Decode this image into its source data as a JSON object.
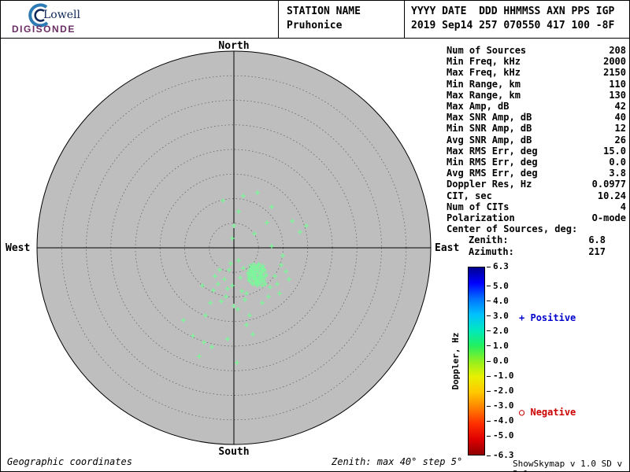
{
  "header": {
    "logo_line1": "Lowell",
    "logo_line2": "DIGISONDE",
    "station_label": "STATION NAME",
    "station_name": "Pruhonice",
    "date_label": "YYYY DATE  DDD HHMMSS AXN PPS IGP",
    "date_value": "2019 Sep14 257 070550 417 100 -8F"
  },
  "skymap": {
    "north": "North",
    "south": "South",
    "west": "West",
    "east": "East",
    "max_zenith_deg": 40,
    "ring_step_deg": 5,
    "background_color": "#bebebe",
    "marker_color": "#7bf69a",
    "points": [
      [
        28,
        34
      ],
      [
        24,
        30
      ],
      [
        33,
        38
      ],
      [
        21,
        36
      ],
      [
        36,
        31
      ],
      [
        27,
        24
      ],
      [
        31,
        44
      ],
      [
        18,
        32
      ],
      [
        40,
        36
      ],
      [
        26,
        40
      ],
      [
        30,
        27
      ],
      [
        35,
        25
      ],
      [
        23,
        25
      ],
      [
        28,
        37
      ],
      [
        33,
        34
      ],
      [
        20,
        42
      ],
      [
        38,
        43
      ],
      [
        25,
        32
      ],
      [
        31,
        40
      ],
      [
        36,
        36
      ],
      [
        22,
        29
      ],
      [
        27,
        46
      ],
      [
        32,
        21
      ],
      [
        39,
        29
      ],
      [
        19,
        37
      ],
      [
        29,
        43
      ],
      [
        34,
        28
      ],
      [
        24,
        38
      ],
      [
        38,
        40
      ],
      [
        21,
        23
      ],
      [
        27,
        34
      ],
      [
        31,
        31
      ],
      [
        26,
        27
      ],
      [
        35,
        42
      ],
      [
        19,
        34
      ],
      [
        30,
        48
      ],
      [
        37,
        23
      ],
      [
        23,
        44
      ],
      [
        28,
        30
      ],
      [
        33,
        45
      ],
      [
        25,
        21
      ],
      [
        41,
        34
      ],
      [
        20,
        28
      ],
      [
        32,
        37
      ],
      [
        27,
        39
      ],
      [
        36,
        48
      ],
      [
        22,
        34
      ],
      [
        29,
        25
      ],
      [
        34,
        32
      ],
      [
        24,
        46
      ],
      [
        30,
        42
      ],
      [
        38,
        27
      ],
      [
        19,
        40
      ],
      [
        26,
        36
      ],
      [
        31,
        22
      ],
      [
        35,
        38
      ],
      [
        23,
        31
      ],
      [
        28,
        44
      ],
      [
        40,
        46
      ],
      [
        21,
        38
      ],
      [
        10,
        55
      ],
      [
        -2,
        48
      ],
      [
        14,
        66
      ],
      [
        -12,
        40
      ],
      [
        5,
        78
      ],
      [
        46,
        50
      ],
      [
        52,
        36
      ],
      [
        60,
        22
      ],
      [
        -6,
        28
      ],
      [
        -10,
        62
      ],
      [
        16,
        58
      ],
      [
        -20,
        46
      ],
      [
        66,
        30
      ],
      [
        44,
        62
      ],
      [
        0,
        74
      ],
      [
        20,
        86
      ],
      [
        -16,
        68
      ],
      [
        8,
        38
      ],
      [
        -26,
        54
      ],
      [
        55,
        46
      ],
      [
        62,
        10
      ],
      [
        48,
        -2
      ],
      [
        -4,
        20
      ],
      [
        -18,
        28
      ],
      [
        6,
        16
      ],
      [
        70,
        40
      ],
      [
        58,
        58
      ],
      [
        -24,
        36
      ],
      [
        12,
        26
      ],
      [
        -8,
        52
      ],
      [
        -14,
        -60
      ],
      [
        6,
        -46
      ],
      [
        0,
        -28
      ],
      [
        26,
        -18
      ],
      [
        42,
        -32
      ],
      [
        -36,
        86
      ],
      [
        -8,
        116
      ],
      [
        4,
        146
      ],
      [
        -28,
        126
      ],
      [
        -52,
        112
      ],
      [
        -64,
        92
      ],
      [
        24,
        110
      ],
      [
        -44,
        138
      ],
      [
        12,
        -66
      ],
      [
        -2,
        -12
      ],
      [
        84,
        -20
      ],
      [
        92,
        -28
      ],
      [
        74,
        -34
      ],
      [
        -38,
        120
      ],
      [
        30,
        -70
      ],
      [
        48,
        -52
      ],
      [
        -30,
        70
      ],
      [
        -40,
        48
      ],
      [
        36,
        70
      ],
      [
        16,
        98
      ]
    ]
  },
  "stats": {
    "rows": [
      {
        "label": "Num of Sources",
        "value": "208"
      },
      {
        "label": "Min Freq, kHz",
        "value": "2000"
      },
      {
        "label": "Max Freq, kHz",
        "value": "2150"
      },
      {
        "label": "Min Range, km",
        "value": "110"
      },
      {
        "label": "Max Range, km",
        "value": "130"
      },
      {
        "label": "Max Amp, dB",
        "value": "42"
      },
      {
        "label": "Max SNR Amp, dB",
        "value": "40"
      },
      {
        "label": "Min SNR Amp, dB",
        "value": "12"
      },
      {
        "label": "Avg SNR Amp, dB",
        "value": "26"
      },
      {
        "label": "Max RMS Err, deg",
        "value": "15.0"
      },
      {
        "label": "Min RMS Err, deg",
        "value": "0.0"
      },
      {
        "label": "Avg RMS Err, deg",
        "value": "3.8"
      },
      {
        "label": "Doppler Res, Hz",
        "value": "0.0977"
      },
      {
        "label": "CIT, sec",
        "value": "10.24"
      },
      {
        "label": "Num of CITs",
        "value": "4"
      },
      {
        "label": "Polarization",
        "value": "O-mode"
      },
      {
        "label": "Center of Sources, deg:",
        "value": ""
      },
      {
        "label": "Zenith:",
        "value": "6.8",
        "indent": true
      },
      {
        "label": "Azimuth:",
        "value": "217",
        "indent": true
      }
    ]
  },
  "colorbar": {
    "title": "Doppler, Hz",
    "max": 6.3,
    "min": -6.3,
    "ticks": [
      "6.3",
      "5.0",
      "4.0",
      "3.0",
      "2.0",
      "1.0",
      "0.0",
      "-1.0",
      "-2.0",
      "-3.0",
      "-4.0",
      "-5.0",
      "-6.3"
    ],
    "gradient": [
      "#000090",
      "#0000ff",
      "#0070ff",
      "#00c0ff",
      "#00e8c0",
      "#20f060",
      "#90f020",
      "#e8f000",
      "#ffc800",
      "#ff8000",
      "#ff3000",
      "#e00000",
      "#900000"
    ],
    "positive_marker": "+",
    "positive_label": "Positive",
    "negative_marker": "○",
    "negative_label": "Negative"
  },
  "footer": {
    "left": "Geographic coordinates",
    "center": "Zenith: max 40°  step 5°",
    "right": "ShowSkymap v 1.0  SD v 5.1"
  }
}
